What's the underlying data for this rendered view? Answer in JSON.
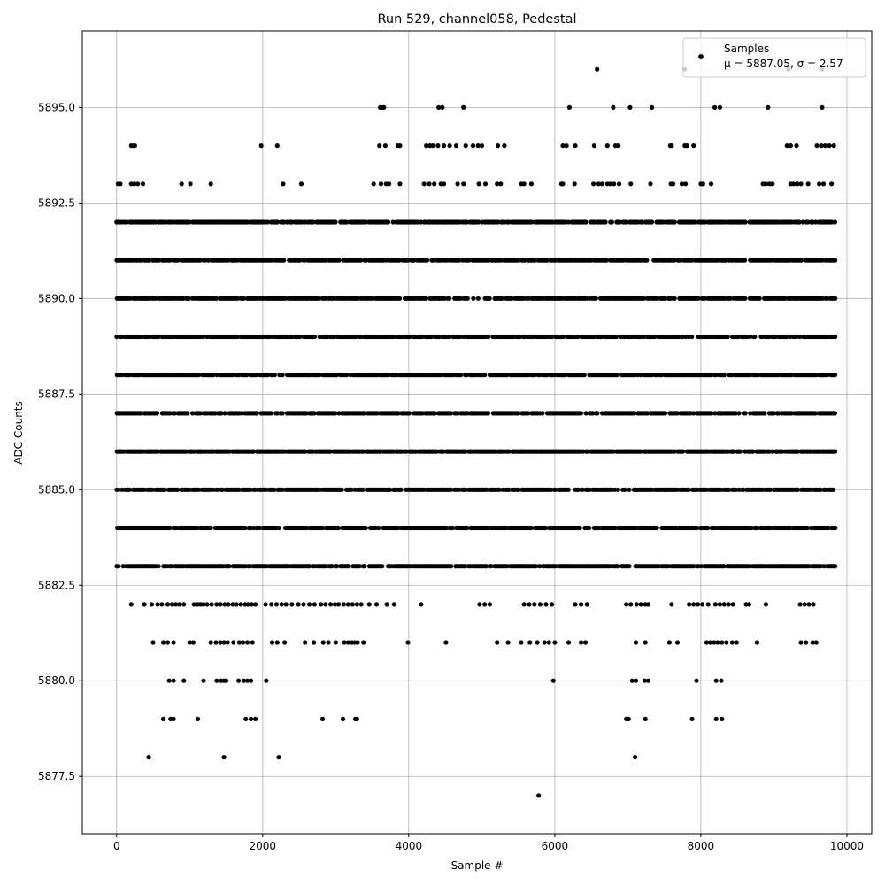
{
  "chart_data": {
    "type": "scatter",
    "title": "Run 529, channel058, Pedestal",
    "xlabel": "Sample #",
    "ylabel": "ADC Counts",
    "xlim": [
      -470,
      10340
    ],
    "ylim": [
      5876.0,
      5897.0
    ],
    "xticks": [
      0,
      2000,
      4000,
      6000,
      8000,
      10000
    ],
    "xtick_labels": [
      "0",
      "2000",
      "4000",
      "6000",
      "8000",
      "10000"
    ],
    "yticks": [
      5877.5,
      5880.0,
      5882.5,
      5885.0,
      5887.5,
      5890.0,
      5892.5,
      5895.0
    ],
    "ytick_labels": [
      "5877.5",
      "5880.0",
      "5882.5",
      "5885.0",
      "5887.5",
      "5890.0",
      "5892.5",
      "5895.0"
    ],
    "grid": true,
    "legend": {
      "placement": "top-right",
      "entries": [
        {
          "label": "Samples",
          "stats": "μ = 5887.05, σ = 2.57"
        }
      ]
    },
    "series": [
      {
        "name": "Samples",
        "color": "#000000",
        "bands": [
          {
            "y": 5896,
            "x": [
              6580,
              7780,
              9200,
              9660
            ]
          },
          {
            "y": 5895,
            "x": [
              3610,
              3640,
              3660,
              4410,
              4460,
              4750,
              6200,
              6800,
              7030,
              7330,
              8190,
              8260,
              8920,
              9660
            ]
          },
          {
            "y": 5894,
            "x": [
              200,
              230,
              250,
              1980,
              2200,
              3600,
              3680,
              3850,
              3880,
              4240,
              4290,
              4330,
              4400,
              4480,
              4560,
              4650,
              4780,
              4880,
              4950,
              5000,
              5220,
              5310,
              6110,
              6160,
              6280,
              6540,
              6720,
              6830,
              6870,
              7580,
              7600,
              7780,
              7810,
              7900,
              9180,
              9230,
              9310,
              9590,
              9650,
              9700,
              9760,
              9820
            ]
          },
          {
            "y": 5893,
            "x": [
              20,
              50,
              200,
              240,
              290,
              360,
              890,
              1010,
              1290,
              2280,
              2530,
              3520,
              3620,
              3690,
              3730,
              3880,
              4210,
              4280,
              4350,
              4440,
              4480,
              4670,
              4750,
              4960,
              5050,
              5210,
              5260,
              5540,
              5580,
              5680,
              6090,
              6110,
              6270,
              6530,
              6600,
              6650,
              6720,
              6760,
              6810,
              6880,
              7040,
              7310,
              7590,
              7620,
              7740,
              7790,
              8000,
              8030,
              8140,
              8850,
              8890,
              8940,
              8980,
              9230,
              9270,
              9320,
              9370,
              9470,
              9620,
              9680,
              9790
            ]
          }
        ],
        "y_bands_dense": [
          5892,
          5891,
          5890,
          5889,
          5888,
          5887,
          5886,
          5885,
          5884,
          5883
        ],
        "x_range": [
          0,
          9840
        ],
        "sparse_bands": [
          {
            "y": 5882,
            "x": [
              200,
              380,
              480,
              560,
              620,
              700,
              760,
              810,
              860,
              920,
              1060,
              1110,
              1150,
              1190,
              1240,
              1300,
              1370,
              1420,
              1480,
              1530,
              1590,
              1640,
              1700,
              1760,
              1800,
              1850,
              1900,
              2040,
              2120,
              2190,
              2260,
              2320,
              2400,
              2490,
              2560,
              2640,
              2710,
              2800,
              2860,
              2930,
              2990,
              3040,
              3110,
              3170,
              3230,
              3290,
              3350,
              3460,
              3560,
              3700,
              3800,
              4170,
              4970,
              5040,
              5110,
              5580,
              5650,
              5720,
              5800,
              5880,
              5960,
              6280,
              6360,
              6440,
              6980,
              7040,
              7120,
              7180,
              7240,
              7280,
              7600,
              7840,
              7900,
              7960,
              8020,
              8100,
              8200,
              8260,
              8320,
              8380,
              8440,
              8620,
              8660,
              8890,
              9360,
              9420,
              9480,
              9540
            ]
          },
          {
            "y": 5881,
            "x": [
              500,
              640,
              700,
              780,
              1000,
              1050,
              1290,
              1360,
              1420,
              1470,
              1520,
              1600,
              1680,
              1730,
              1790,
              1860,
              2130,
              2200,
              2300,
              2580,
              2700,
              2830,
              2900,
              3000,
              3120,
              3170,
              3220,
              3260,
              3300,
              3380,
              3990,
              4510,
              5210,
              5360,
              5540,
              5660,
              5760,
              5860,
              5920,
              6000,
              6190,
              6360,
              6420,
              7110,
              7240,
              7570,
              7680,
              8080,
              8130,
              8180,
              8230,
              8290,
              8350,
              8430,
              8490,
              8770,
              9370,
              9440,
              9530,
              9580
            ]
          },
          {
            "y": 5880,
            "x": [
              720,
              780,
              920,
              1190,
              1370,
              1430,
              1470,
              1500,
              1670,
              1740,
              1790,
              1840,
              2050,
              5980,
              7060,
              7110,
              7230,
              7280,
              7940,
              8210,
              8280
            ]
          },
          {
            "y": 5879,
            "x": [
              640,
              740,
              780,
              1110,
              1770,
              1840,
              1900,
              2820,
              3100,
              3270,
              3290,
              6980,
              7010,
              7240,
              7880,
              8210,
              8290
            ]
          },
          {
            "y": 5878,
            "x": [
              440,
              1470,
              2220,
              7100
            ]
          },
          {
            "y": 5877,
            "x": [
              5780
            ]
          }
        ]
      }
    ]
  }
}
